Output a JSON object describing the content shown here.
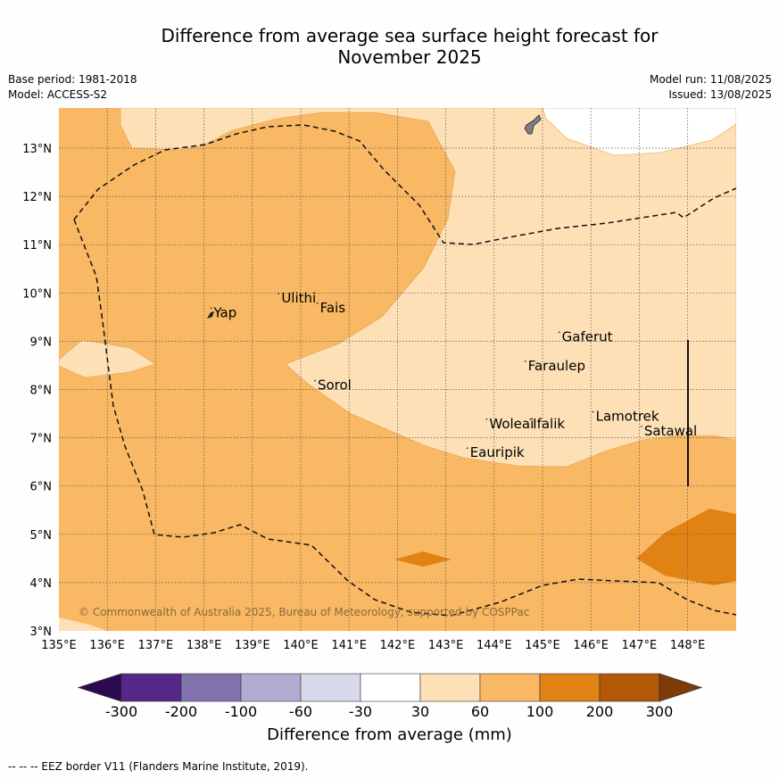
{
  "title": "Difference from average sea surface height forecast for November 2025",
  "title_line1": "Difference from average sea surface height forecast for",
  "title_line2": "November 2025",
  "meta": {
    "base_period": "Base period: 1981-2018",
    "model": "Model: ACCESS-S2",
    "model_run": "Model run: 11/08/2025",
    "issued": "Issued: 13/08/2025"
  },
  "map": {
    "lon_range": [
      135,
      149
    ],
    "lat_range": [
      3,
      13.8
    ],
    "lon_ticks": [
      "135°E",
      "136°E",
      "137°E",
      "138°E",
      "139°E",
      "140°E",
      "141°E",
      "142°E",
      "143°E",
      "144°E",
      "145°E",
      "146°E",
      "147°E",
      "148°E"
    ],
    "lat_ticks": [
      "3°N",
      "4°N",
      "5°N",
      "6°N",
      "7°N",
      "8°N",
      "9°N",
      "10°N",
      "11°N",
      "12°N",
      "13°N"
    ],
    "places": [
      {
        "name": "Yap",
        "lon": 138.2,
        "lat": 9.5
      },
      {
        "name": "Ulithi",
        "lon": 139.6,
        "lat": 9.8
      },
      {
        "name": "Fais",
        "lon": 140.4,
        "lat": 9.6
      },
      {
        "name": "Sorol",
        "lon": 140.35,
        "lat": 8.0
      },
      {
        "name": "Gaferut",
        "lon": 145.4,
        "lat": 9.0
      },
      {
        "name": "Faraulep",
        "lon": 144.7,
        "lat": 8.4
      },
      {
        "name": "Woleai",
        "lon": 143.9,
        "lat": 7.2
      },
      {
        "name": "Ifalik",
        "lon": 144.8,
        "lat": 7.2
      },
      {
        "name": "Lamotrek",
        "lon": 146.1,
        "lat": 7.35
      },
      {
        "name": "Satawal",
        "lon": 147.1,
        "lat": 7.05
      },
      {
        "name": "Eauripik",
        "lon": 143.5,
        "lat": 6.6
      }
    ],
    "copyright": "© Commonwealth of Australia 2025, Bureau of Meteorology, supported by COSPPac"
  },
  "colorbar": {
    "labels": [
      "-300",
      "-200",
      "-100",
      "-60",
      "-30",
      "30",
      "60",
      "100",
      "200",
      "300"
    ],
    "colors": [
      "#2d0a4e",
      "#542788",
      "#8073ac",
      "#b2abd2",
      "#d8daeb",
      "#ffffff",
      "#fee0b6",
      "#f9b864",
      "#e08214",
      "#b35806",
      "#7f3b08"
    ],
    "title": "Difference from average (mm)"
  },
  "footer": "--  --  -- EEZ border V11 (Flanders Marine Institute, 2019)."
}
